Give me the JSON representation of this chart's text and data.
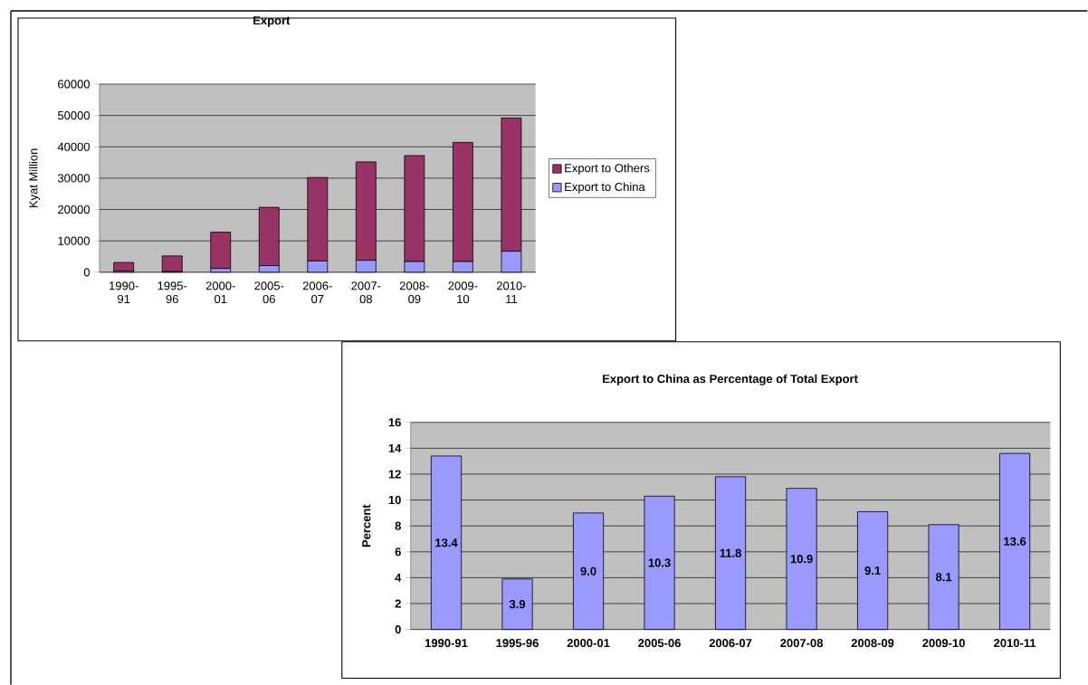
{
  "chart_data": [
    {
      "type": "bar",
      "title": "Export",
      "ylabel": "Kyat Million",
      "stacked": true,
      "legend": "right",
      "grid": "y",
      "categories": [
        "1990-91",
        "1995-96",
        "2000-01",
        "2005-06",
        "2006-07",
        "2007-08",
        "2008-09",
        "2009-10",
        "2010-11"
      ],
      "ylim": [
        0,
        60000
      ],
      "yticks": [
        0,
        10000,
        20000,
        30000,
        40000,
        50000,
        60000
      ],
      "series": [
        {
          "name": "Export to China",
          "color": "#9999ff",
          "values": [
            400,
            200,
            1200,
            2100,
            3600,
            3800,
            3400,
            3400,
            6700
          ]
        },
        {
          "name": "Export to Others",
          "color": "#993366",
          "values": [
            2700,
            5000,
            11600,
            18600,
            26600,
            31400,
            33800,
            38000,
            42500
          ]
        }
      ]
    },
    {
      "type": "bar",
      "title": "Export to China as Percentage of Total Export",
      "ylabel": "Percent",
      "grid": "y",
      "categories": [
        "1990-91",
        "1995-96",
        "2000-01",
        "2005-06",
        "2006-07",
        "2007-08",
        "2008-09",
        "2009-10",
        "2010-11"
      ],
      "ylim": [
        0,
        16
      ],
      "yticks": [
        0,
        2,
        4,
        6,
        8,
        10,
        12,
        14,
        16
      ],
      "series": [
        {
          "color": "#9999ff",
          "values": [
            13.4,
            3.9,
            9.0,
            10.3,
            11.8,
            10.9,
            9.1,
            8.1,
            13.6
          ],
          "value_labels": [
            "13.4",
            "3.9",
            "9.0",
            "10.3",
            "11.8",
            "10.9",
            "9.1",
            "8.1",
            "13.6"
          ]
        }
      ]
    }
  ]
}
